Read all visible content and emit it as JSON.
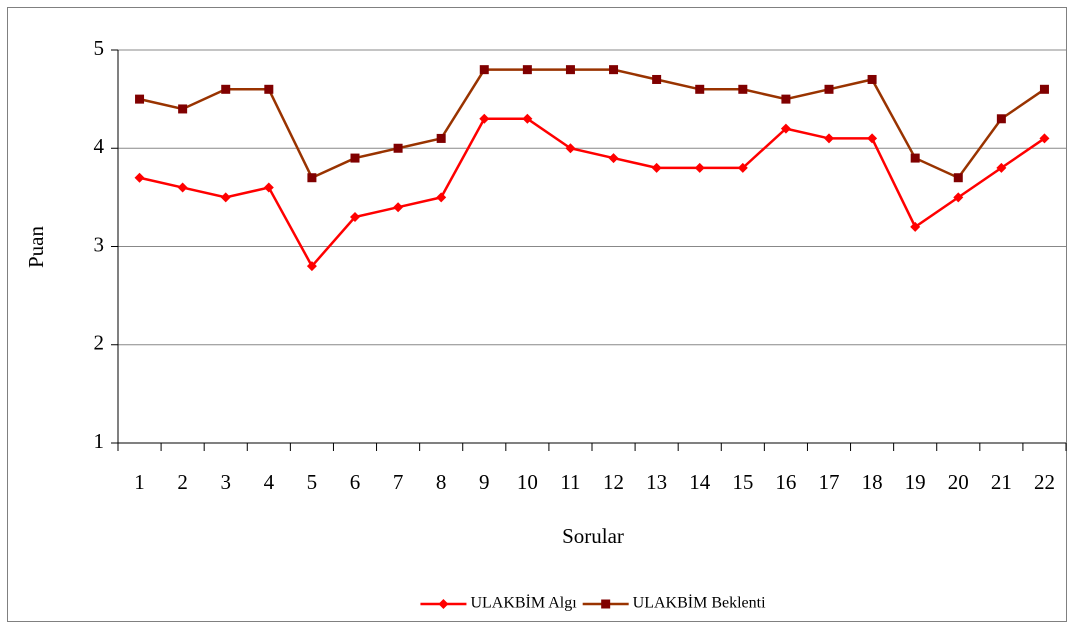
{
  "chart_data": {
    "type": "line",
    "xlabel": "Sorular",
    "ylabel": "Puan",
    "categories": [
      "1",
      "2",
      "3",
      "4",
      "5",
      "6",
      "7",
      "8",
      "9",
      "10",
      "11",
      "12",
      "13",
      "14",
      "15",
      "16",
      "17",
      "18",
      "19",
      "20",
      "21",
      "22"
    ],
    "series": [
      {
        "name": "ULAKBİM Algı",
        "color": "#ff0000",
        "marker": "diamond",
        "values": [
          3.7,
          3.6,
          3.5,
          3.6,
          2.8,
          3.3,
          3.4,
          3.5,
          4.3,
          4.3,
          4.0,
          3.9,
          3.8,
          3.8,
          3.8,
          4.2,
          4.1,
          4.1,
          3.2,
          3.5,
          3.8,
          4.1
        ]
      },
      {
        "name": "ULAKBİM Beklenti",
        "color": "#993300",
        "marker": "square",
        "values": [
          4.5,
          4.4,
          4.6,
          4.6,
          3.7,
          3.9,
          4.0,
          4.1,
          4.8,
          4.8,
          4.8,
          4.8,
          4.7,
          4.6,
          4.6,
          4.5,
          4.6,
          4.7,
          3.9,
          3.7,
          4.3,
          4.6
        ]
      }
    ],
    "ylim": [
      1,
      5
    ],
    "yticks": [
      1,
      2,
      3,
      4,
      5
    ],
    "grid": true,
    "legend": "bottom"
  }
}
